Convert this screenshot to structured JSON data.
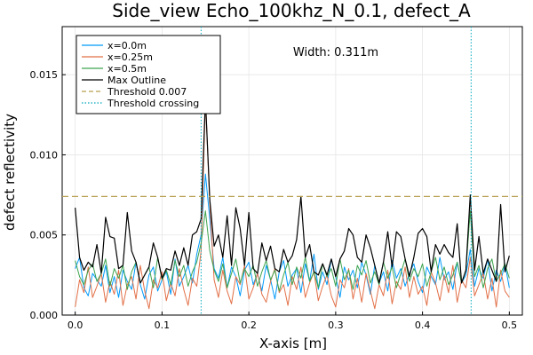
{
  "chart_data": {
    "type": "line",
    "title": "Side_view Echo_100khz_N_0.1, defect_A",
    "xlabel": "X-axis [m]",
    "ylabel": "defect reflectivity",
    "xlim": [
      -0.015,
      0.515
    ],
    "ylim": [
      0,
      0.018
    ],
    "xticks": [
      0.0,
      0.1,
      0.2,
      0.3,
      0.4,
      0.5
    ],
    "xtick_labels": [
      "0.0",
      "0.1",
      "0.2",
      "0.3",
      "0.4",
      "0.5"
    ],
    "yticks": [
      0.0,
      0.005,
      0.01,
      0.015
    ],
    "ytick_labels": [
      "0.000",
      "0.005",
      "0.010",
      "0.015"
    ],
    "grid": true,
    "legend_position": "top-left",
    "annotation": "Width: 0.311m",
    "x": [
      0.0,
      0.005,
      0.01,
      0.015,
      0.02,
      0.025,
      0.03,
      0.035,
      0.04,
      0.045,
      0.05,
      0.055,
      0.06,
      0.065,
      0.07,
      0.075,
      0.08,
      0.085,
      0.09,
      0.095,
      0.1,
      0.105,
      0.11,
      0.115,
      0.12,
      0.125,
      0.13,
      0.135,
      0.14,
      0.145,
      0.15,
      0.155,
      0.16,
      0.165,
      0.17,
      0.175,
      0.18,
      0.185,
      0.19,
      0.195,
      0.2,
      0.205,
      0.21,
      0.215,
      0.22,
      0.225,
      0.23,
      0.235,
      0.24,
      0.245,
      0.25,
      0.255,
      0.26,
      0.265,
      0.27,
      0.275,
      0.28,
      0.285,
      0.29,
      0.295,
      0.3,
      0.305,
      0.31,
      0.315,
      0.32,
      0.325,
      0.33,
      0.335,
      0.34,
      0.345,
      0.35,
      0.355,
      0.36,
      0.365,
      0.37,
      0.375,
      0.38,
      0.385,
      0.39,
      0.395,
      0.4,
      0.405,
      0.41,
      0.415,
      0.42,
      0.425,
      0.43,
      0.435,
      0.44,
      0.445,
      0.45,
      0.455,
      0.46,
      0.465,
      0.47,
      0.475,
      0.48,
      0.485,
      0.49,
      0.495,
      0.5
    ],
    "series": [
      {
        "name": "x=0.0m",
        "color": "#009AFA",
        "style": "solid",
        "values": [
          0.0029,
          0.0036,
          0.0017,
          0.0012,
          0.0026,
          0.0022,
          0.0018,
          0.0031,
          0.0014,
          0.0024,
          0.0011,
          0.0028,
          0.0021,
          0.0016,
          0.0033,
          0.0019,
          0.001,
          0.0025,
          0.003,
          0.0015,
          0.0022,
          0.0027,
          0.0013,
          0.0035,
          0.0018,
          0.0024,
          0.0031,
          0.002,
          0.0038,
          0.005,
          0.0088,
          0.006,
          0.0029,
          0.0023,
          0.0036,
          0.0017,
          0.003,
          0.0024,
          0.0012,
          0.0028,
          0.0033,
          0.0019,
          0.0026,
          0.0015,
          0.0031,
          0.0022,
          0.001,
          0.0027,
          0.0034,
          0.0018,
          0.0025,
          0.0029,
          0.0014,
          0.0032,
          0.0021,
          0.0038,
          0.0016,
          0.0027,
          0.0019,
          0.0035,
          0.0024,
          0.0011,
          0.003,
          0.0022,
          0.0028,
          0.0017,
          0.0033,
          0.0025,
          0.0013,
          0.0031,
          0.002,
          0.0027,
          0.0015,
          0.0034,
          0.0023,
          0.0029,
          0.0018,
          0.0026,
          0.0032,
          0.0021,
          0.0014,
          0.003,
          0.0024,
          0.0019,
          0.0036,
          0.0022,
          0.0027,
          0.0016,
          0.0033,
          0.002,
          0.0025,
          0.0041,
          0.0018,
          0.0029,
          0.0023,
          0.0035,
          0.0015,
          0.0028,
          0.0021,
          0.0032,
          0.0017
        ]
      },
      {
        "name": "x=0.25m",
        "color": "#E26F46",
        "style": "solid",
        "values": [
          0.0005,
          0.0022,
          0.0014,
          0.003,
          0.0011,
          0.0018,
          0.0026,
          0.0008,
          0.0021,
          0.0013,
          0.0028,
          0.0006,
          0.0019,
          0.0024,
          0.001,
          0.0031,
          0.0015,
          0.0004,
          0.0022,
          0.0017,
          0.0027,
          0.0009,
          0.002,
          0.0012,
          0.0029,
          0.0016,
          0.0006,
          0.0023,
          0.0018,
          0.004,
          0.0135,
          0.007,
          0.0022,
          0.0011,
          0.0028,
          0.0015,
          0.0007,
          0.0024,
          0.0019,
          0.0031,
          0.001,
          0.0017,
          0.0026,
          0.0013,
          0.0008,
          0.0021,
          0.0029,
          0.0014,
          0.0019,
          0.0006,
          0.0024,
          0.0016,
          0.003,
          0.0011,
          0.002,
          0.0027,
          0.0009,
          0.0018,
          0.0025,
          0.0012,
          0.0005,
          0.0022,
          0.0017,
          0.0029,
          0.001,
          0.0023,
          0.0008,
          0.0026,
          0.0015,
          0.0004,
          0.0019,
          0.0012,
          0.0028,
          0.0007,
          0.0021,
          0.0016,
          0.003,
          0.0011,
          0.0024,
          0.0013,
          0.0018,
          0.0006,
          0.0027,
          0.002,
          0.0009,
          0.0025,
          0.0014,
          0.0031,
          0.0008,
          0.0022,
          0.0017,
          0.0036,
          0.0012,
          0.0019,
          0.0026,
          0.001,
          0.0023,
          0.0005,
          0.0028,
          0.0015,
          0.0011
        ]
      },
      {
        "name": "x=0.5m",
        "color": "#3EA44E",
        "style": "solid",
        "values": [
          0.0034,
          0.0024,
          0.0019,
          0.0028,
          0.0032,
          0.0021,
          0.0026,
          0.0035,
          0.0018,
          0.0029,
          0.0023,
          0.0031,
          0.0016,
          0.0027,
          0.0033,
          0.002,
          0.0025,
          0.003,
          0.0017,
          0.0036,
          0.0022,
          0.0028,
          0.0019,
          0.0034,
          0.0024,
          0.0031,
          0.0018,
          0.0027,
          0.0033,
          0.0045,
          0.0065,
          0.004,
          0.0028,
          0.0021,
          0.0032,
          0.0017,
          0.0026,
          0.0035,
          0.002,
          0.0029,
          0.0024,
          0.0031,
          0.0018,
          0.0027,
          0.0034,
          0.0022,
          0.0028,
          0.0015,
          0.0025,
          0.0033,
          0.0019,
          0.003,
          0.0023,
          0.0036,
          0.0021,
          0.0027,
          0.0017,
          0.0032,
          0.0024,
          0.0029,
          0.0018,
          0.0035,
          0.0022,
          0.0028,
          0.0016,
          0.0031,
          0.0025,
          0.0034,
          0.002,
          0.0027,
          0.0019,
          0.0033,
          0.0023,
          0.003,
          0.0017,
          0.0026,
          0.0035,
          0.0021,
          0.0029,
          0.0024,
          0.0032,
          0.0018,
          0.0027,
          0.0036,
          0.0022,
          0.003,
          0.0019,
          0.0025,
          0.0033,
          0.002,
          0.0028,
          0.0065,
          0.0024,
          0.0031,
          0.0017,
          0.0029,
          0.0035,
          0.0021,
          0.0026,
          0.0032,
          0.0023
        ]
      },
      {
        "name": "Max Outline",
        "color": "#000000",
        "style": "solid",
        "values": [
          0.0067,
          0.0036,
          0.0028,
          0.0033,
          0.003,
          0.0044,
          0.0026,
          0.0061,
          0.0049,
          0.0048,
          0.0029,
          0.0031,
          0.0064,
          0.004,
          0.0033,
          0.002,
          0.0025,
          0.003,
          0.0045,
          0.0036,
          0.0023,
          0.0029,
          0.0028,
          0.004,
          0.0031,
          0.0042,
          0.0031,
          0.005,
          0.0052,
          0.006,
          0.0135,
          0.0072,
          0.0043,
          0.005,
          0.0036,
          0.0062,
          0.0031,
          0.0067,
          0.0054,
          0.0031,
          0.0064,
          0.0029,
          0.0026,
          0.0045,
          0.0034,
          0.0043,
          0.0029,
          0.0027,
          0.0041,
          0.0033,
          0.0037,
          0.0047,
          0.0074,
          0.0036,
          0.0044,
          0.0027,
          0.0025,
          0.0032,
          0.0025,
          0.0035,
          0.0024,
          0.0035,
          0.004,
          0.0054,
          0.005,
          0.0036,
          0.0033,
          0.005,
          0.0042,
          0.0031,
          0.002,
          0.0033,
          0.0052,
          0.003,
          0.0052,
          0.0049,
          0.0035,
          0.0024,
          0.0036,
          0.0051,
          0.0054,
          0.0049,
          0.0027,
          0.0044,
          0.0038,
          0.0044,
          0.0039,
          0.0036,
          0.0057,
          0.002,
          0.0028,
          0.0075,
          0.0028,
          0.0049,
          0.0026,
          0.0035,
          0.0028,
          0.0021,
          0.0069,
          0.0027,
          0.0037
        ]
      }
    ],
    "threshold": {
      "name": "Threshold 0.007",
      "value": 0.0074,
      "color": "#B8A052",
      "style": "dashed"
    },
    "crossing": {
      "name": "Threshold crossing",
      "x": [
        0.145,
        0.456
      ],
      "color": "#00A9BD",
      "style": "dotted"
    }
  }
}
